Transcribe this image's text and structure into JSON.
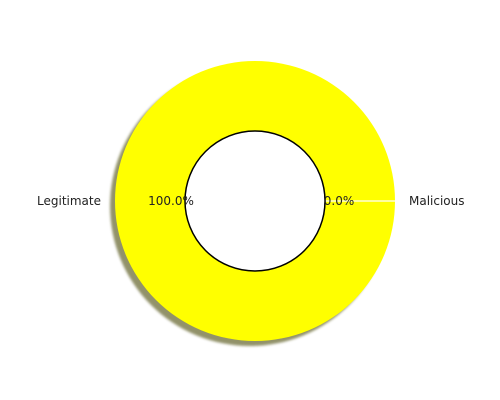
{
  "chart_data": {
    "type": "pie",
    "donut": true,
    "shadow": true,
    "categories": [
      "Legitimate",
      "Malicious"
    ],
    "values": [
      100.0,
      0.0
    ],
    "colors": [
      "#ffff00",
      "#ffffff"
    ],
    "percent_labels": [
      "100.0%",
      "0.0%"
    ],
    "title": ""
  }
}
